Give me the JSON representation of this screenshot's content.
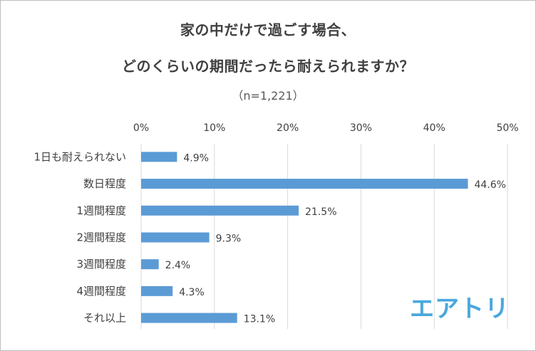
{
  "title_line1": "家の中だけで過ごす場合、",
  "title_line2": "どのくらいの期間だったら耐えられますか？",
  "subtitle": "（n=1,221）",
  "logo_text": "エアトリ",
  "colors": {
    "bar": "#5b9bd5",
    "grid": "#d9d9d9",
    "logo": "#4aa8dc"
  },
  "chart_data": {
    "type": "bar",
    "orientation": "horizontal",
    "title": "家の中だけで過ごす場合、どのくらいの期間だったら耐えられますか？",
    "categories": [
      "1日も耐えられない",
      "数日程度",
      "1週間程度",
      "2週間程度",
      "3週間程度",
      "4週間程度",
      "それ以上"
    ],
    "values": [
      4.9,
      44.6,
      21.5,
      9.3,
      2.4,
      4.3,
      13.1
    ],
    "data_labels": [
      "4.9%",
      "44.6%",
      "21.5%",
      "9.3%",
      "2.4%",
      "4.3%",
      "13.1%"
    ],
    "xlim": [
      0,
      50
    ],
    "ticks": [
      0,
      10,
      20,
      30,
      40,
      50
    ],
    "tick_labels": [
      "0%",
      "10%",
      "20%",
      "30%",
      "40%",
      "50%"
    ],
    "axis_position": "top",
    "grid": true,
    "unit": "%"
  }
}
